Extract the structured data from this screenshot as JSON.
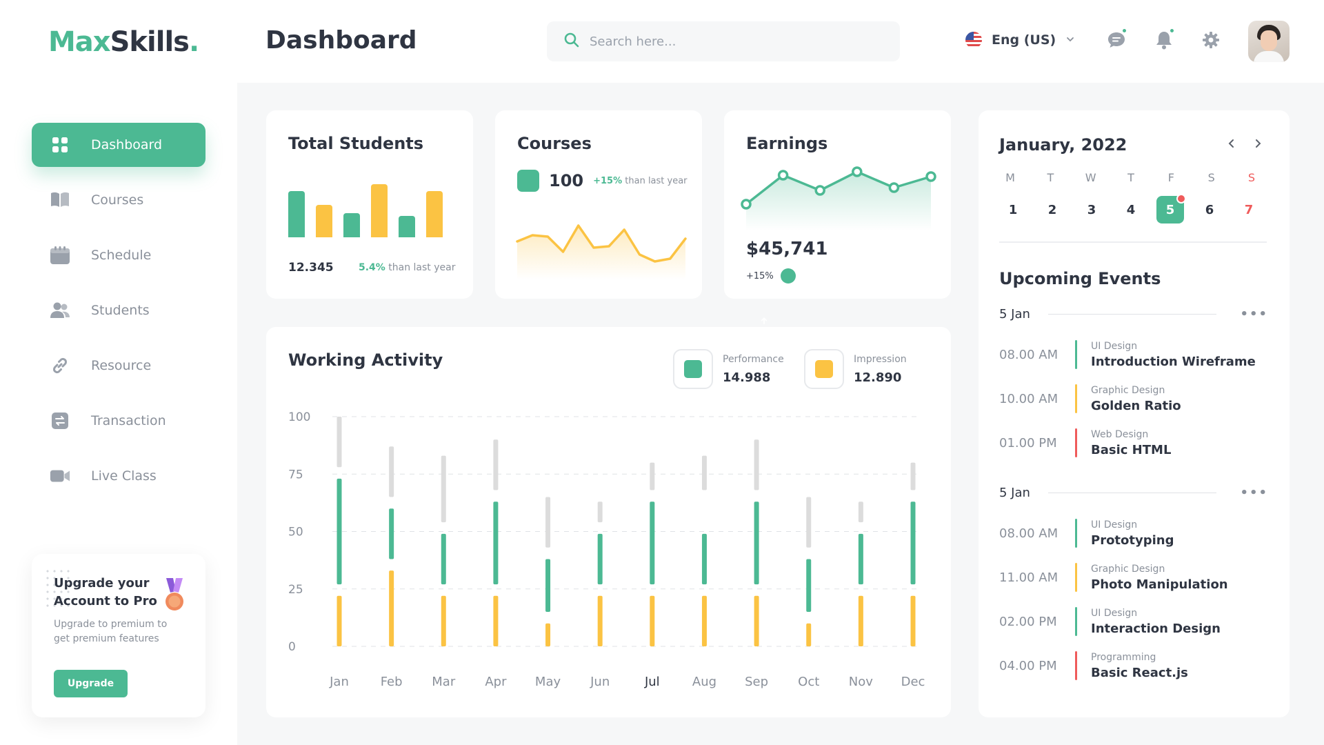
{
  "brand": {
    "name_part1": "Max",
    "name_part2": "Skills",
    "name_dot": "."
  },
  "header": {
    "title": "Dashboard",
    "search_placeholder": "Search here...",
    "language": "Eng (US)"
  },
  "sidebar": {
    "items": [
      {
        "label": "Dashboard",
        "icon": "grid-icon",
        "active": true
      },
      {
        "label": "Courses",
        "icon": "book-icon"
      },
      {
        "label": "Schedule",
        "icon": "calendar-icon"
      },
      {
        "label": "Students",
        "icon": "users-icon"
      },
      {
        "label": "Resource",
        "icon": "link-icon"
      },
      {
        "label": "Transaction",
        "icon": "transfer-icon"
      },
      {
        "label": "Live Class",
        "icon": "video-icon"
      }
    ],
    "upgrade": {
      "title": "Upgrade your Account to Pro",
      "text": "Upgrade to premium to get premium features",
      "button": "Upgrade"
    }
  },
  "total_students": {
    "title": "Total Students",
    "value": "12.345",
    "change": "5.4%",
    "change_text": "than last year",
    "bar_levels": [
      0.73,
      0.51,
      0.38,
      0.84,
      0.34,
      0.73
    ],
    "bar_colors": [
      "#4cb993",
      "#fbc343",
      "#4cb993",
      "#fbc343",
      "#4cb993",
      "#fbc343"
    ]
  },
  "courses": {
    "title": "Courses",
    "value": "100",
    "change": "+15%",
    "change_text": "than last year",
    "trend": [
      55,
      64,
      62,
      40,
      78,
      46,
      48,
      72,
      36,
      26,
      30,
      59
    ]
  },
  "earnings": {
    "title": "Earnings",
    "amount": "$45,741",
    "change": "+15%",
    "trend": [
      38,
      80,
      58,
      85,
      62,
      78
    ]
  },
  "working_activity": {
    "title": "Working Activity",
    "performance_label": "Performance",
    "performance_value": "14.988",
    "impression_label": "Impression",
    "impression_value": "12.890",
    "y_ticks": [
      "100",
      "75",
      "50",
      "25",
      "0"
    ],
    "highlight_month": "Jul"
  },
  "chart_data": {
    "type": "bar",
    "categories": [
      "Jan",
      "Feb",
      "Mar",
      "Apr",
      "May",
      "Jun",
      "Jul",
      "Aug",
      "Sep",
      "Oct",
      "Nov",
      "Dec"
    ],
    "ylim": [
      0,
      100
    ],
    "y_ticks": [
      0,
      25,
      50,
      75,
      100
    ],
    "series": [
      {
        "color": "#fbc343",
        "ranges": [
          [
            0,
            22
          ],
          [
            0,
            33
          ],
          [
            0,
            22
          ],
          [
            0,
            22
          ],
          [
            0,
            10
          ],
          [
            0,
            22
          ],
          [
            0,
            22
          ],
          [
            0,
            22
          ],
          [
            0,
            22
          ],
          [
            0,
            10
          ],
          [
            0,
            22
          ],
          [
            0,
            22
          ]
        ]
      },
      {
        "color": "#4cb993",
        "ranges": [
          [
            27,
            73
          ],
          [
            38,
            60
          ],
          [
            27,
            49
          ],
          [
            27,
            63
          ],
          [
            15,
            38
          ],
          [
            27,
            49
          ],
          [
            27,
            63
          ],
          [
            27,
            49
          ],
          [
            27,
            63
          ],
          [
            15,
            38
          ],
          [
            27,
            49
          ],
          [
            27,
            63
          ]
        ]
      },
      {
        "color": "#dcdcdc",
        "ranges": [
          [
            78,
            100
          ],
          [
            65,
            87
          ],
          [
            54,
            83
          ],
          [
            68,
            90
          ],
          [
            43,
            65
          ],
          [
            54,
            63
          ],
          [
            68,
            80
          ],
          [
            68,
            83
          ],
          [
            68,
            90
          ],
          [
            43,
            65
          ],
          [
            54,
            63
          ],
          [
            68,
            80
          ]
        ]
      }
    ],
    "grid": true
  },
  "calendar": {
    "month": "January, 2022",
    "weekdays": [
      "M",
      "T",
      "W",
      "T",
      "F",
      "S",
      "S"
    ],
    "days": [
      "1",
      "2",
      "3",
      "4",
      "5",
      "6",
      "7"
    ],
    "today": "5"
  },
  "events": {
    "title": "Upcoming Events",
    "groups": [
      {
        "date": "5 Jan",
        "items": [
          {
            "time": "08.00 AM",
            "category": "UI Design",
            "title": "Introduction Wireframe",
            "color": "#4cb993"
          },
          {
            "time": "10.00 AM",
            "category": "Graphic Design",
            "title": "Golden Ratio",
            "color": "#fbc343"
          },
          {
            "time": "01.00 PM",
            "category": "Web Design",
            "title": "Basic HTML",
            "color": "#ef5b5b"
          }
        ]
      },
      {
        "date": "5 Jan",
        "items": [
          {
            "time": "08.00 AM",
            "category": "UI Design",
            "title": "Prototyping",
            "color": "#4cb993"
          },
          {
            "time": "11.00 AM",
            "category": "Graphic Design",
            "title": "Photo Manipulation",
            "color": "#fbc343"
          },
          {
            "time": "02.00 PM",
            "category": "UI Design",
            "title": "Interaction Design",
            "color": "#4cb993"
          },
          {
            "time": "04.00 PM",
            "category": "Programming",
            "title": "Basic React.js",
            "color": "#ef5b5b"
          }
        ]
      }
    ]
  },
  "colors": {
    "accent": "#4cb993",
    "yellow": "#fbc343",
    "red": "#ef5b5b",
    "muted": "#8a909a"
  }
}
